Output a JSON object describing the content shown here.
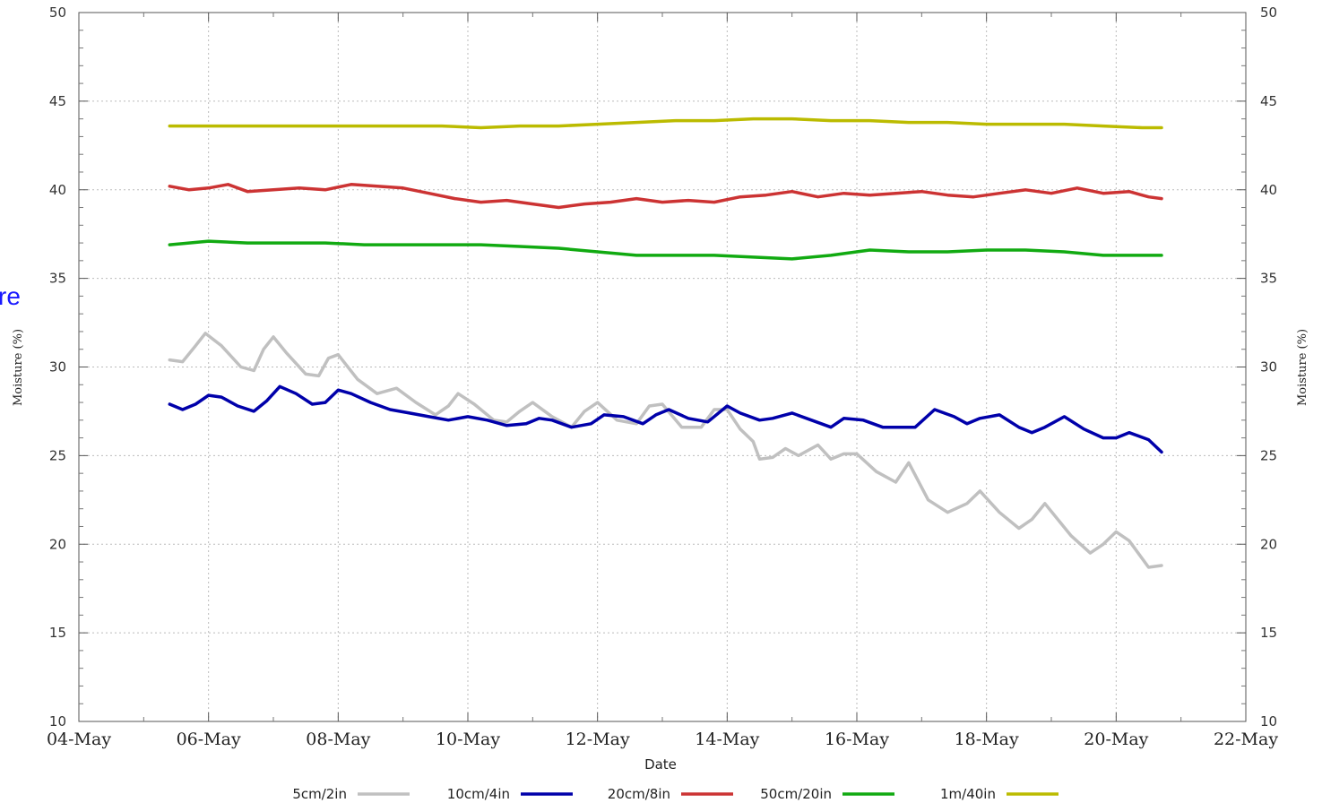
{
  "chart_data": {
    "type": "line",
    "title": "",
    "xlabel": "Date",
    "ylabel": "Moisture (%)",
    "ylabel_right": "Moisture (%)",
    "side_fragment": "re",
    "ylim": [
      10,
      50
    ],
    "y_ticks": [
      10,
      15,
      20,
      25,
      30,
      35,
      40,
      45,
      50
    ],
    "x_ticks": [
      "04-May",
      "06-May",
      "08-May",
      "10-May",
      "12-May",
      "14-May",
      "16-May",
      "18-May",
      "20-May",
      "22-May"
    ],
    "x_tick_days": [
      4,
      6,
      8,
      10,
      12,
      14,
      16,
      18,
      20,
      22
    ],
    "xlim_days": [
      4,
      22
    ],
    "grid": true,
    "legend_position": "bottom",
    "series": [
      {
        "name": "5cm/2in",
        "color": "#c0c0c0",
        "x": [
          5.4,
          5.6,
          5.8,
          5.95,
          6.2,
          6.5,
          6.7,
          6.85,
          7.0,
          7.2,
          7.5,
          7.7,
          7.85,
          8.0,
          8.3,
          8.6,
          8.9,
          9.2,
          9.5,
          9.7,
          9.85,
          10.1,
          10.4,
          10.6,
          10.8,
          11.0,
          11.3,
          11.6,
          11.8,
          12.0,
          12.3,
          12.6,
          12.8,
          13.0,
          13.3,
          13.6,
          13.8,
          14.0,
          14.2,
          14.4,
          14.5,
          14.7,
          14.9,
          15.1,
          15.4,
          15.6,
          15.8,
          16.0,
          16.3,
          16.6,
          16.8,
          17.1,
          17.4,
          17.7,
          17.9,
          18.2,
          18.5,
          18.7,
          18.9,
          19.3,
          19.6,
          19.8,
          20.0,
          20.2,
          20.5,
          20.7
        ],
        "values": [
          30.4,
          30.3,
          31.2,
          31.9,
          31.2,
          30.0,
          29.8,
          31.0,
          31.7,
          30.8,
          29.6,
          29.5,
          30.5,
          30.7,
          29.3,
          28.5,
          28.8,
          28.0,
          27.3,
          27.8,
          28.5,
          27.9,
          27.0,
          26.9,
          27.5,
          28.0,
          27.2,
          26.6,
          27.5,
          28.0,
          27.0,
          26.8,
          27.8,
          27.9,
          26.6,
          26.6,
          27.6,
          27.6,
          26.5,
          25.8,
          24.8,
          24.9,
          25.4,
          25.0,
          25.6,
          24.8,
          25.1,
          25.1,
          24.1,
          23.5,
          24.6,
          22.5,
          21.8,
          22.3,
          23.0,
          21.8,
          20.9,
          21.4,
          22.3,
          20.5,
          19.5,
          20.0,
          20.7,
          20.2,
          18.7,
          18.8
        ]
      },
      {
        "name": "10cm/4in",
        "color": "#0000aa",
        "x": [
          5.4,
          5.6,
          5.8,
          6.0,
          6.2,
          6.45,
          6.7,
          6.9,
          7.1,
          7.35,
          7.6,
          7.8,
          8.0,
          8.2,
          8.5,
          8.8,
          9.1,
          9.4,
          9.7,
          10.0,
          10.3,
          10.6,
          10.9,
          11.1,
          11.3,
          11.6,
          11.9,
          12.1,
          12.4,
          12.7,
          12.9,
          13.1,
          13.4,
          13.7,
          14.0,
          14.2,
          14.5,
          14.7,
          15.0,
          15.3,
          15.6,
          15.8,
          16.1,
          16.4,
          16.7,
          16.9,
          17.2,
          17.5,
          17.7,
          17.9,
          18.2,
          18.5,
          18.7,
          18.9,
          19.2,
          19.5,
          19.8,
          20.0,
          20.2,
          20.5,
          20.7
        ],
        "values": [
          27.9,
          27.6,
          27.9,
          28.4,
          28.3,
          27.8,
          27.5,
          28.1,
          28.9,
          28.5,
          27.9,
          28.0,
          28.7,
          28.5,
          28.0,
          27.6,
          27.4,
          27.2,
          27.0,
          27.2,
          27.0,
          26.7,
          26.8,
          27.1,
          27.0,
          26.6,
          26.8,
          27.3,
          27.2,
          26.8,
          27.3,
          27.6,
          27.1,
          26.9,
          27.8,
          27.4,
          27.0,
          27.1,
          27.4,
          27.0,
          26.6,
          27.1,
          27.0,
          26.6,
          26.6,
          26.6,
          27.6,
          27.2,
          26.8,
          27.1,
          27.3,
          26.6,
          26.3,
          26.6,
          27.2,
          26.5,
          26.0,
          26.0,
          26.3,
          25.9,
          25.2
        ]
      },
      {
        "name": "20cm/8in",
        "color": "#cc3333",
        "x": [
          5.4,
          5.7,
          6.0,
          6.3,
          6.6,
          7.0,
          7.4,
          7.8,
          8.2,
          8.6,
          9.0,
          9.4,
          9.8,
          10.2,
          10.6,
          11.0,
          11.4,
          11.8,
          12.2,
          12.6,
          13.0,
          13.4,
          13.8,
          14.2,
          14.6,
          15.0,
          15.4,
          15.8,
          16.2,
          16.6,
          17.0,
          17.4,
          17.8,
          18.2,
          18.6,
          19.0,
          19.4,
          19.8,
          20.2,
          20.5,
          20.7
        ],
        "values": [
          40.2,
          40.0,
          40.1,
          40.3,
          39.9,
          40.0,
          40.1,
          40.0,
          40.3,
          40.2,
          40.1,
          39.8,
          39.5,
          39.3,
          39.4,
          39.2,
          39.0,
          39.2,
          39.3,
          39.5,
          39.3,
          39.4,
          39.3,
          39.6,
          39.7,
          39.9,
          39.6,
          39.8,
          39.7,
          39.8,
          39.9,
          39.7,
          39.6,
          39.8,
          40.0,
          39.8,
          40.1,
          39.8,
          39.9,
          39.6,
          39.5
        ]
      },
      {
        "name": "50cm/20in",
        "color": "#11aa11",
        "x": [
          5.4,
          6.0,
          6.6,
          7.2,
          7.8,
          8.4,
          9.0,
          9.6,
          10.2,
          10.8,
          11.4,
          12.0,
          12.6,
          13.2,
          13.8,
          14.4,
          15.0,
          15.6,
          16.2,
          16.8,
          17.4,
          18.0,
          18.6,
          19.2,
          19.8,
          20.4,
          20.7
        ],
        "values": [
          36.9,
          37.1,
          37.0,
          37.0,
          37.0,
          36.9,
          36.9,
          36.9,
          36.9,
          36.8,
          36.7,
          36.5,
          36.3,
          36.3,
          36.3,
          36.2,
          36.1,
          36.3,
          36.6,
          36.5,
          36.5,
          36.6,
          36.6,
          36.5,
          36.3,
          36.3,
          36.3
        ]
      },
      {
        "name": "1m/40in",
        "color": "#bbbb00",
        "x": [
          5.4,
          6.0,
          6.6,
          7.2,
          7.8,
          8.4,
          9.0,
          9.6,
          10.2,
          10.8,
          11.4,
          12.0,
          12.6,
          13.2,
          13.8,
          14.4,
          15.0,
          15.6,
          16.2,
          16.8,
          17.4,
          18.0,
          18.6,
          19.2,
          19.8,
          20.4,
          20.7
        ],
        "values": [
          43.6,
          43.6,
          43.6,
          43.6,
          43.6,
          43.6,
          43.6,
          43.6,
          43.5,
          43.6,
          43.6,
          43.7,
          43.8,
          43.9,
          43.9,
          44.0,
          44.0,
          43.9,
          43.9,
          43.8,
          43.8,
          43.7,
          43.7,
          43.7,
          43.6,
          43.5,
          43.5
        ]
      }
    ]
  }
}
